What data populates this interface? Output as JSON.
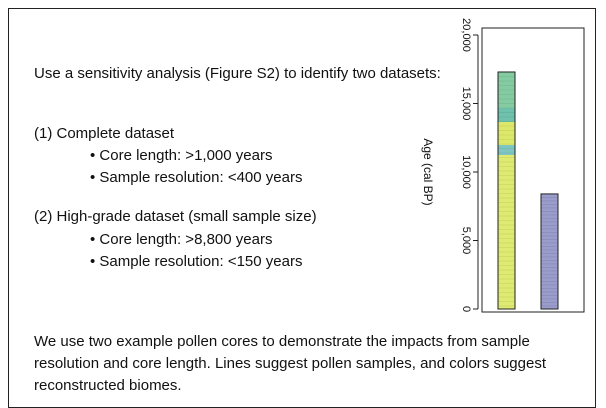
{
  "intro": "Use a sensitivity analysis (Figure S2) to identify two datasets:",
  "datasets": [
    {
      "label": "(1) Complete dataset",
      "criteria": [
        "Core length: >1,000 years",
        "Sample resolution: <400 years"
      ]
    },
    {
      "label": "(2) High-grade dataset (small sample size)",
      "criteria": [
        "Core length: >8,800 years",
        "Sample resolution: <150 years"
      ]
    }
  ],
  "chart": {
    "y_label": "Age (cal BP)",
    "ylim": [
      0,
      20000
    ],
    "yticks": [
      0,
      {
        "value": 5000,
        "label": "5,000"
      },
      {
        "value": 10000,
        "label": "10,000"
      },
      {
        "value": 15000,
        "label": "15,000"
      },
      {
        "value": 20000,
        "label": "20,000"
      }
    ],
    "cores": [
      {
        "top": 17300,
        "segments": [
          {
            "from": 0,
            "to": 11240,
            "color": "#dfea72"
          },
          {
            "from": 11240,
            "to": 11970,
            "color": "#7fc6c2"
          },
          {
            "from": 11970,
            "to": 13650,
            "color": "#dce86a"
          },
          {
            "from": 13650,
            "to": 14670,
            "color": "#6fc0ad"
          },
          {
            "from": 14670,
            "to": 17300,
            "color": "#85cba2"
          }
        ]
      },
      {
        "top": 8400,
        "segments": [
          {
            "from": 0,
            "to": 8400,
            "color": "#9a9ccb"
          }
        ]
      }
    ]
  },
  "caption": "We use two example pollen cores to demonstrate the impacts from sample resolution and core length. Lines suggest pollen samples, and colors suggest reconstructed biomes."
}
